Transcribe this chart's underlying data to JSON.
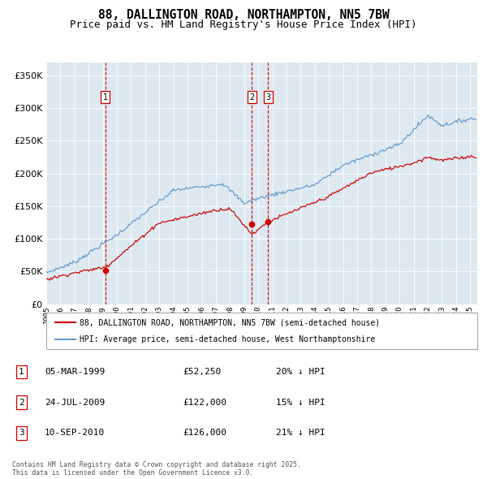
{
  "title_line1": "88, DALLINGTON ROAD, NORTHAMPTON, NN5 7BW",
  "title_line2": "Price paid vs. HM Land Registry's House Price Index (HPI)",
  "legend_red": "88, DALLINGTON ROAD, NORTHAMPTON, NN5 7BW (semi-detached house)",
  "legend_blue": "HPI: Average price, semi-detached house, West Northamptonshire",
  "footer": "Contains HM Land Registry data © Crown copyright and database right 2025.\nThis data is licensed under the Open Government Licence v3.0.",
  "sales": [
    {
      "num": 1,
      "date": "05-MAR-1999",
      "price": "£52,250",
      "hpi_note": "20% ↓ HPI"
    },
    {
      "num": 2,
      "date": "24-JUL-2009",
      "price": "£122,000",
      "hpi_note": "15% ↓ HPI"
    },
    {
      "num": 3,
      "date": "10-SEP-2010",
      "price": "£126,000",
      "hpi_note": "21% ↓ HPI"
    }
  ],
  "sale_years": [
    1999.17,
    2009.56,
    2010.7
  ],
  "sale_prices": [
    52250,
    122000,
    126000
  ],
  "ylim": [
    0,
    370000
  ],
  "yticks": [
    0,
    50000,
    100000,
    150000,
    200000,
    250000,
    300000,
    350000
  ],
  "xlim": [
    1995,
    2025.5
  ],
  "plot_bg": "#dde8f0",
  "red_color": "#cc0000",
  "blue_color": "#6699cc",
  "vline_color": "#cc0000",
  "grid_color": "#ffffff",
  "title_fontsize": 10.5,
  "subtitle_fontsize": 9
}
